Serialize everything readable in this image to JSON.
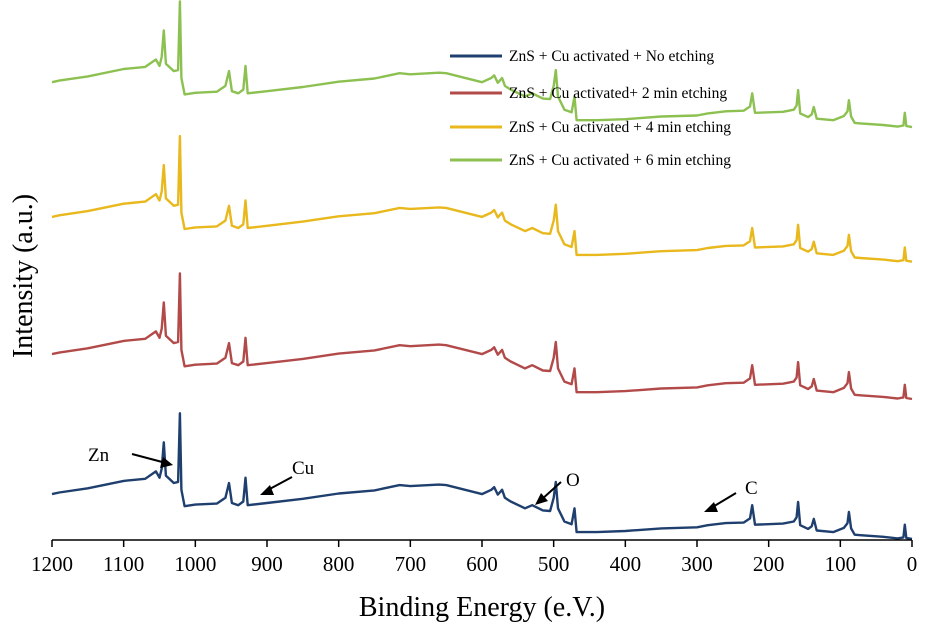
{
  "chart_data": {
    "type": "line",
    "title": "",
    "xlabel": "Binding Energy (e.V.)",
    "ylabel": "Intensity (a.u.)",
    "xlim": [
      1200,
      0
    ],
    "x_reversed": true,
    "x_ticks": [
      1200,
      1100,
      1000,
      900,
      800,
      700,
      600,
      500,
      400,
      300,
      200,
      100,
      0
    ],
    "ylim": [
      0,
      100
    ],
    "y_ticks_shown": false,
    "legend_position": "top-right",
    "series": [
      {
        "name": "ZnS + Cu activated + No etching",
        "color": "#1f3f6e",
        "offset": 0,
        "points": [
          [
            1200,
            8.7
          ],
          [
            1190,
            9.0
          ],
          [
            1150,
            9.8
          ],
          [
            1100,
            11.2
          ],
          [
            1070,
            11.6
          ],
          [
            1055,
            13
          ],
          [
            1050,
            11.8
          ],
          [
            1047,
            13.5
          ],
          [
            1044,
            18.5
          ],
          [
            1041,
            12.2
          ],
          [
            1030,
            10.8
          ],
          [
            1024,
            11.0
          ],
          [
            1021.5,
            24.0
          ],
          [
            1019.5,
            9.5
          ],
          [
            1015,
            6.4
          ],
          [
            1000,
            6.7
          ],
          [
            970,
            6.9
          ],
          [
            958,
            8.0
          ],
          [
            953,
            10.8
          ],
          [
            949,
            7.0
          ],
          [
            940,
            6.6
          ],
          [
            933,
            7.3
          ],
          [
            930,
            11.8
          ],
          [
            927,
            6.6
          ],
          [
            900,
            7.0
          ],
          [
            850,
            7.8
          ],
          [
            800,
            8.8
          ],
          [
            750,
            9.4
          ],
          [
            715,
            10.4
          ],
          [
            700,
            10.2
          ],
          [
            660,
            10.5
          ],
          [
            650,
            10.4
          ],
          [
            600,
            8.7
          ],
          [
            587,
            9.5
          ],
          [
            583,
            10.0
          ],
          [
            578,
            8.6
          ],
          [
            572,
            9.5
          ],
          [
            568,
            8.0
          ],
          [
            560,
            7.3
          ],
          [
            540,
            6.0
          ],
          [
            530,
            6.6
          ],
          [
            515,
            5.6
          ],
          [
            505,
            5.5
          ],
          [
            500,
            8.0
          ],
          [
            497,
            11.0
          ],
          [
            494,
            6.0
          ],
          [
            485,
            3.5
          ],
          [
            475,
            3.0
          ],
          [
            471,
            6.0
          ],
          [
            468,
            1.5
          ],
          [
            440,
            1.5
          ],
          [
            400,
            1.7
          ],
          [
            350,
            2.2
          ],
          [
            300,
            2.4
          ],
          [
            285,
            2.8
          ],
          [
            260,
            3.2
          ],
          [
            235,
            3.3
          ],
          [
            226,
            4.1
          ],
          [
            223,
            6.6
          ],
          [
            219,
            2.9
          ],
          [
            180,
            3.1
          ],
          [
            165,
            3.5
          ],
          [
            161,
            4.3
          ],
          [
            159,
            7.2
          ],
          [
            156,
            2.8
          ],
          [
            145,
            2.1
          ],
          [
            140,
            2.6
          ],
          [
            137,
            4.0
          ],
          [
            133,
            1.8
          ],
          [
            110,
            1.5
          ],
          [
            95,
            2.3
          ],
          [
            90,
            3.2
          ],
          [
            88,
            5.3
          ],
          [
            85,
            2.2
          ],
          [
            80,
            1.0
          ],
          [
            72,
            0.9
          ],
          [
            40,
            0.6
          ],
          [
            20,
            0.3
          ],
          [
            12,
            0.5
          ],
          [
            10,
            2.9
          ],
          [
            8,
            0.4
          ],
          [
            0,
            0.2
          ]
        ]
      },
      {
        "name": "ZnS + Cu activated+ 2 min etching",
        "color": "#b24a4a",
        "offset": 26.5
      },
      {
        "name": "ZnS + Cu activated + 4 min etching",
        "color": "#e8b81d",
        "offset": 52.5
      },
      {
        "name": "ZnS + Cu activated + 6 min etching",
        "color": "#8cc152",
        "offset": 78
      }
    ],
    "annotations": [
      {
        "text": "Zn",
        "x": 1021,
        "y": 23
      },
      {
        "text": "Cu",
        "x": 930,
        "y": 12
      },
      {
        "text": "O",
        "x": 530,
        "y": 7
      },
      {
        "text": "C",
        "x": 285,
        "y": 2.8
      }
    ]
  }
}
